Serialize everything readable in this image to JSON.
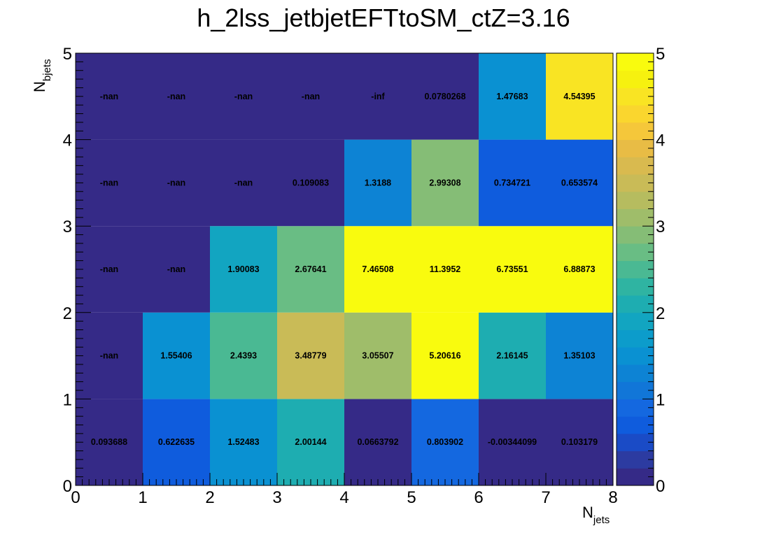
{
  "chart_data": {
    "type": "heatmap",
    "title": "h_2lss_jetbjetEFTtoSM_ctZ=3.16",
    "xlabel": {
      "main": "N",
      "sub": "jets"
    },
    "ylabel": {
      "main": "N",
      "sub": "bjets"
    },
    "xlim": [
      0,
      8
    ],
    "ylim": [
      0,
      5
    ],
    "zlim": [
      0,
      5
    ],
    "x_ticks": [
      "0",
      "1",
      "2",
      "3",
      "4",
      "5",
      "6",
      "7",
      "8"
    ],
    "y_ticks": [
      "0",
      "1",
      "2",
      "3",
      "4",
      "5"
    ],
    "z_ticks": [
      "0",
      "1",
      "2",
      "3",
      "4",
      "5"
    ],
    "palette": [
      "#352a87",
      "#2c3ba1",
      "#1a4bc6",
      "#0f5cdd",
      "#1468e0",
      "#1176d8",
      "#0d83d4",
      "#0a91d2",
      "#0c9ccb",
      "#12a5c1",
      "#1eadb1",
      "#2fb4a2",
      "#4ab993",
      "#69bd84",
      "#85bd76",
      "#9fbd6a",
      "#b6bc5f",
      "#c9bb57",
      "#d9ba4f",
      "#e8bc45",
      "#f5c73a",
      "#fad62e",
      "#f9e423",
      "#f6f10f",
      "#f9fb0e"
    ],
    "under_color": "#352a87",
    "over_color": "#f9fb0e",
    "rows": [
      {
        "y": 0.5,
        "values": [
          0.093688,
          0.622635,
          1.52483,
          2.00144,
          0.0663792,
          0.803902,
          -0.00344099,
          0.103179
        ],
        "labels": [
          "0.093688",
          "0.622635",
          "1.52483",
          "2.00144",
          "0.0663792",
          "0.803902",
          "-0.00344099",
          "0.103179"
        ]
      },
      {
        "y": 1.5,
        "values": [
          null,
          1.55406,
          2.4393,
          3.48779,
          3.05507,
          5.20616,
          2.16145,
          1.35103
        ],
        "labels": [
          "-nan",
          "1.55406",
          "2.4393",
          "3.48779",
          "3.05507",
          "5.20616",
          "2.16145",
          "1.35103"
        ]
      },
      {
        "y": 2.5,
        "values": [
          null,
          null,
          1.90083,
          2.67641,
          7.46508,
          11.3952,
          6.73551,
          6.88873
        ],
        "labels": [
          "-nan",
          "-nan",
          "1.90083",
          "2.67641",
          "7.46508",
          "11.3952",
          "6.73551",
          "6.88873"
        ]
      },
      {
        "y": 3.5,
        "values": [
          null,
          null,
          null,
          0.109083,
          1.3188,
          2.99308,
          0.734721,
          0.653574
        ],
        "labels": [
          "-nan",
          "-nan",
          "-nan",
          "0.109083",
          "1.3188",
          "2.99308",
          "0.734721",
          "0.653574"
        ]
      },
      {
        "y": 4.5,
        "values": [
          null,
          null,
          null,
          null,
          null,
          0.0780268,
          1.47683,
          4.54395
        ],
        "labels": [
          "-nan",
          "-nan",
          "-nan",
          "-nan",
          "-inf",
          "0.0780268",
          "1.47683",
          "4.54395"
        ]
      }
    ],
    "grid": false,
    "legend": "colorbar-right"
  }
}
